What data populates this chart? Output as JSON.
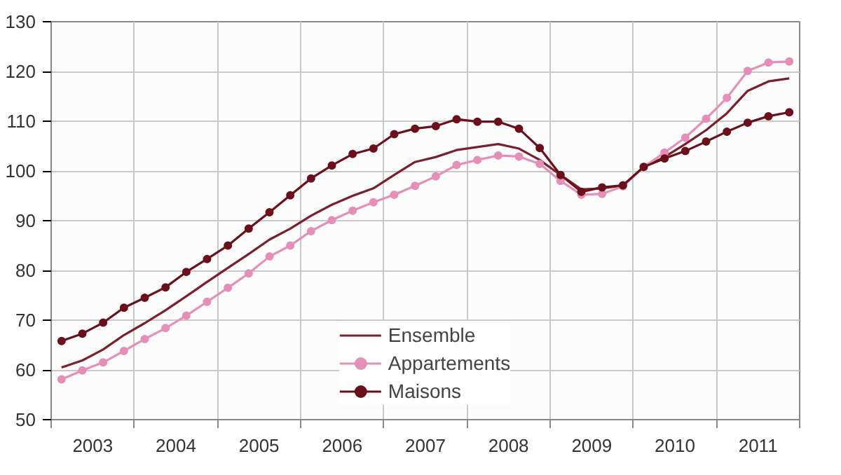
{
  "chart_data": {
    "type": "line",
    "x": [
      2003.125,
      2003.375,
      2003.625,
      2003.875,
      2004.125,
      2004.375,
      2004.625,
      2004.875,
      2005.125,
      2005.375,
      2005.625,
      2005.875,
      2006.125,
      2006.375,
      2006.625,
      2006.875,
      2007.125,
      2007.375,
      2007.625,
      2007.875,
      2008.125,
      2008.375,
      2008.625,
      2008.875,
      2009.125,
      2009.375,
      2009.625,
      2009.875,
      2010.125,
      2010.375,
      2010.625,
      2010.875,
      2011.125,
      2011.375,
      2011.625,
      2011.875
    ],
    "series": [
      {
        "name": "Ensemble",
        "color": "#7a1f2b",
        "marker": "none",
        "values": [
          60.5,
          61.9,
          64.1,
          67,
          69.4,
          72,
          74.8,
          77.7,
          80.5,
          83.3,
          86.2,
          88.4,
          91,
          93.2,
          95,
          96.5,
          99.2,
          101.8,
          102.8,
          104.2,
          104.8,
          105.4,
          104.5,
          102.2,
          99.2,
          96.3,
          96.5,
          97.1,
          100.8,
          102.8,
          105.4,
          108.2,
          111.6,
          116.1,
          118,
          118.6
        ]
      },
      {
        "name": "Appartements",
        "color": "#e58fb8",
        "marker": "circle",
        "values": [
          58.1,
          59.9,
          61.5,
          63.8,
          66.2,
          68.4,
          70.9,
          73.7,
          76.5,
          79.4,
          82.8,
          85,
          87.9,
          90.1,
          92,
          93.7,
          95.2,
          97,
          98.9,
          101.2,
          102.2,
          103.1,
          102.9,
          101.4,
          98,
          95.2,
          95.4,
          96.9,
          100.8,
          103.7,
          106.7,
          110.5,
          114.7,
          120.1,
          121.8,
          122
        ]
      },
      {
        "name": "Maisons",
        "color": "#6b0f1a",
        "marker": "circle",
        "values": [
          65.8,
          67.3,
          69.5,
          72.5,
          74.5,
          76.6,
          79.7,
          82.3,
          85,
          88.4,
          91.7,
          95.1,
          98.5,
          101.1,
          103.4,
          104.5,
          107.4,
          108.5,
          109,
          110.4,
          109.9,
          109.9,
          108.5,
          104.6,
          99.2,
          95.8,
          96.7,
          97.1,
          100.8,
          102.5,
          104,
          105.9,
          107.9,
          109.7,
          111,
          111.8
        ]
      }
    ],
    "xlim": [
      2003,
      2012
    ],
    "xticks": [
      {
        "value": 2003,
        "label": null
      },
      {
        "value": 2003.5,
        "label": "2003"
      },
      {
        "value": 2004,
        "label": null
      },
      {
        "value": 2004.5,
        "label": "2004"
      },
      {
        "value": 2005,
        "label": null
      },
      {
        "value": 2005.5,
        "label": "2005"
      },
      {
        "value": 2006,
        "label": null
      },
      {
        "value": 2006.5,
        "label": "2006"
      },
      {
        "value": 2007,
        "label": null
      },
      {
        "value": 2007.5,
        "label": "2007"
      },
      {
        "value": 2008,
        "label": null
      },
      {
        "value": 2008.5,
        "label": "2008"
      },
      {
        "value": 2009,
        "label": null
      },
      {
        "value": 2009.5,
        "label": "2009"
      },
      {
        "value": 2010,
        "label": null
      },
      {
        "value": 2010.5,
        "label": "2010"
      },
      {
        "value": 2011,
        "label": null
      },
      {
        "value": 2011.5,
        "label": "2011"
      },
      {
        "value": 2012,
        "label": null
      }
    ],
    "ylim": [
      50,
      130
    ],
    "yticks": [
      50,
      60,
      70,
      80,
      90,
      100,
      110,
      120,
      130
    ],
    "grid": true,
    "legend": "bottom",
    "line_style": "solid"
  }
}
